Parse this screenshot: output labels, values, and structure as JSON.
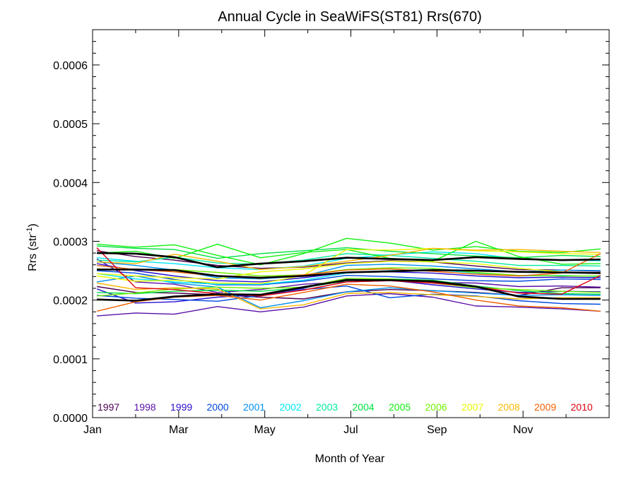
{
  "chart_data": {
    "type": "line",
    "title": "Annual Cycle in SeaWiFS(ST81) Rrs(670)",
    "xlabel": "Month of Year",
    "ylabel_main": "Rrs (str",
    "ylabel_sup": "-1",
    "ylabel_close": ")",
    "xlim": [
      0,
      12
    ],
    "ylim": [
      0,
      0.00066
    ],
    "x_ticks": [
      {
        "value": 0,
        "label": "Jan"
      },
      {
        "value": 2,
        "label": "Mar"
      },
      {
        "value": 4,
        "label": "May"
      },
      {
        "value": 6,
        "label": "Jul"
      },
      {
        "value": 8,
        "label": "Sep"
      },
      {
        "value": 10,
        "label": "Nov"
      }
    ],
    "y_ticks": [
      {
        "value": 0,
        "label": "0.0000"
      },
      {
        "value": 0.0001,
        "label": "0.0001"
      },
      {
        "value": 0.0002,
        "label": "0.0002"
      },
      {
        "value": 0.0003,
        "label": "0.0003"
      },
      {
        "value": 0.0004,
        "label": "0.0004"
      },
      {
        "value": 0.0005,
        "label": "0.0005"
      },
      {
        "value": 0.0006,
        "label": "0.0006"
      }
    ],
    "x": [
      0.1,
      1.0,
      1.9,
      2.9,
      3.9,
      4.9,
      5.9,
      6.9,
      7.9,
      8.9,
      9.9,
      10.9,
      11.8
    ],
    "legend_placement": "bottom",
    "series": [
      {
        "name": "1997",
        "color": "#4b0050",
        "values": [
          0.000223,
          0.000213,
          0.000212,
          0.000209,
          0.000205,
          0.000202,
          0.000214,
          0.000218,
          0.000216,
          0.000213,
          0.000208,
          0.000221,
          0.000221
        ]
      },
      {
        "name": "1997",
        "color": "#4b0050",
        "values": [
          0.000284,
          0.000274,
          0.000268,
          0.000259,
          0.000254,
          0.000256,
          0.000263,
          0.000267,
          0.000265,
          0.000258,
          0.000252,
          0.000251,
          0.000249
        ]
      },
      {
        "name": "1998",
        "color": "#5a10a8",
        "values": [
          0.000173,
          0.000178,
          0.000176,
          0.000189,
          0.00018,
          0.000188,
          0.000207,
          0.000211,
          0.000205,
          0.00019,
          0.000188,
          0.000185,
          0.000181
        ]
      },
      {
        "name": "1998",
        "color": "#5a10a8",
        "values": [
          0.00027,
          0.000231,
          0.000227,
          0.000213,
          0.000218,
          0.000227,
          0.000231,
          0.000233,
          0.00023,
          0.000229,
          0.000223,
          0.000224,
          0.000222
        ]
      },
      {
        "name": "1999",
        "color": "#2a10d0",
        "values": [
          0.000219,
          0.000195,
          0.000197,
          0.000205,
          0.000209,
          0.00022,
          0.000236,
          0.000234,
          0.000226,
          0.000219,
          0.000213,
          0.000215,
          0.000214
        ]
      },
      {
        "name": "1999",
        "color": "#2a10d0",
        "values": [
          0.000262,
          0.00025,
          0.000241,
          0.000233,
          0.000231,
          0.000238,
          0.000247,
          0.000248,
          0.000246,
          0.000241,
          0.000238,
          0.000239,
          0.000238
        ]
      },
      {
        "name": "2000",
        "color": "#0048e0",
        "values": [
          0.00025,
          0.000246,
          0.000235,
          0.000226,
          0.000226,
          0.000232,
          0.000242,
          0.00024,
          0.000236,
          0.000233,
          0.000232,
          0.000236,
          0.000235
        ]
      },
      {
        "name": "2000",
        "color": "#0048e0",
        "values": [
          0.000208,
          0.000203,
          0.000201,
          0.000198,
          0.000208,
          0.000218,
          0.000224,
          0.000204,
          0.00021,
          0.000207,
          0.000199,
          0.000194,
          0.000193
        ]
      },
      {
        "name": "2001",
        "color": "#0090f0",
        "values": [
          0.000265,
          0.000259,
          0.000251,
          0.000238,
          0.000236,
          0.000241,
          0.000259,
          0.000261,
          0.000258,
          0.000253,
          0.000248,
          0.000251,
          0.00025
        ]
      },
      {
        "name": "2001",
        "color": "#0090f0",
        "values": [
          0.000231,
          0.000241,
          0.000229,
          0.000222,
          0.000187,
          0.000199,
          0.000214,
          0.000221,
          0.000216,
          0.000212,
          0.000208,
          0.000209,
          0.000208
        ]
      },
      {
        "name": "2002",
        "color": "#00e8f8",
        "values": [
          0.000272,
          0.000266,
          0.000262,
          0.000255,
          0.000252,
          0.000258,
          0.000271,
          0.000277,
          0.000282,
          0.000279,
          0.00027,
          0.000268,
          0.000267
        ]
      },
      {
        "name": "2002",
        "color": "#00e8f8",
        "values": [
          0.000245,
          0.000236,
          0.000231,
          0.000227,
          0.000227,
          0.000234,
          0.000246,
          0.00025,
          0.000252,
          0.000246,
          0.000241,
          0.000242,
          0.00024
        ]
      },
      {
        "name": "2003",
        "color": "#00e8a0",
        "values": [
          0.000268,
          0.000265,
          0.000273,
          0.000263,
          0.000261,
          0.000268,
          0.000279,
          0.000276,
          0.000271,
          0.000266,
          0.000259,
          0.000259,
          0.000258
        ]
      },
      {
        "name": "2004",
        "color": "#00e040",
        "values": [
          0.000292,
          0.000288,
          0.000286,
          0.000271,
          0.000279,
          0.000284,
          0.000289,
          0.000283,
          0.000279,
          0.000275,
          0.000272,
          0.000276,
          0.000274
        ]
      },
      {
        "name": "2004",
        "color": "#00e040",
        "values": [
          0.000213,
          0.000211,
          0.000215,
          0.000217,
          0.000215,
          0.000221,
          0.000233,
          0.000236,
          0.000234,
          0.000224,
          0.000216,
          0.000211,
          0.00021
        ]
      },
      {
        "name": "2005",
        "color": "#10f010",
        "values": [
          0.000295,
          0.00029,
          0.000294,
          0.000276,
          0.00026,
          0.000279,
          0.000305,
          0.000297,
          0.000285,
          0.000291,
          0.000283,
          0.000281,
          0.000287
        ]
      },
      {
        "name": "2005",
        "color": "#10f010",
        "values": [
          0.00028,
          0.000283,
          0.000271,
          0.000295,
          0.000272,
          0.000281,
          0.000286,
          0.000271,
          0.000266,
          0.0003,
          0.000274,
          0.000261,
          0.000262
        ]
      },
      {
        "name": "2006",
        "color": "#70f000",
        "values": [
          0.000253,
          0.000251,
          0.000252,
          0.000247,
          0.000241,
          0.000243,
          0.000252,
          0.000255,
          0.000254,
          0.000247,
          0.000242,
          0.000241,
          0.000241
        ]
      },
      {
        "name": "2006",
        "color": "#70f000",
        "values": [
          0.000207,
          0.000212,
          0.000219,
          0.000222,
          0.00022,
          0.000222,
          0.000237,
          0.000236,
          0.000229,
          0.000221,
          0.000218,
          0.000215,
          0.000213
        ]
      },
      {
        "name": "2007",
        "color": "#e8f800",
        "values": [
          0.000241,
          0.000232,
          0.000234,
          0.000229,
          0.000228,
          0.000242,
          0.000286,
          0.000285,
          0.000288,
          0.000284,
          0.000282,
          0.000279,
          0.000278
        ]
      },
      {
        "name": "2007",
        "color": "#e8f800",
        "values": [
          0.000245,
          0.000241,
          0.000238,
          0.000236,
          0.000248,
          0.000253,
          0.000262,
          0.000266,
          0.000265,
          0.000262,
          0.000254,
          0.000248,
          0.000246
        ]
      },
      {
        "name": "2008",
        "color": "#f8b800",
        "values": [
          0.000265,
          0.000262,
          0.000278,
          0.000266,
          0.000252,
          0.000257,
          0.000266,
          0.000276,
          0.000288,
          0.000285,
          0.000286,
          0.000283,
          0.000281
        ]
      },
      {
        "name": "2008",
        "color": "#f8b800",
        "values": [
          0.000229,
          0.000218,
          0.000221,
          0.000219,
          0.000185,
          0.000192,
          0.000211,
          0.000213,
          0.000209,
          0.000206,
          0.000202,
          0.000204,
          0.000204
        ]
      },
      {
        "name": "2009",
        "color": "#f06000",
        "values": [
          0.000181,
          0.000197,
          0.000205,
          0.000208,
          0.0002,
          0.000213,
          0.000227,
          0.000224,
          0.000214,
          0.0002,
          0.00019,
          0.000187,
          0.000181
        ]
      },
      {
        "name": "2009",
        "color": "#f06000",
        "values": [
          0.000259,
          0.000252,
          0.000248,
          0.000241,
          0.000237,
          0.000243,
          0.000251,
          0.000253,
          0.000249,
          0.000244,
          0.000241,
          0.000246,
          0.000279
        ]
      },
      {
        "name": "2010",
        "color": "#e00010",
        "values": [
          0.000289,
          0.000221,
          0.000218,
          0.000211,
          0.000207,
          0.000217,
          0.000231,
          0.000233,
          0.000229,
          0.000223,
          0.000212,
          0.00021,
          0.000242
        ]
      },
      {
        "name": "",
        "color": "#000000",
        "values": [
          0.000252,
          0.000252,
          0.000251,
          0.000241,
          0.000238,
          0.000241,
          0.000247,
          0.000249,
          0.000251,
          0.00025,
          0.000248,
          0.000247,
          0.000246
        ]
      },
      {
        "name": "",
        "color": "#000000",
        "values": [
          0.00028,
          0.000279,
          0.000273,
          0.000256,
          0.000262,
          0.000266,
          0.000272,
          0.00027,
          0.000268,
          0.000273,
          0.00027,
          0.000268,
          0.000269
        ]
      },
      {
        "name": "",
        "color": "#000000",
        "values": [
          0.000201,
          0.000199,
          0.000206,
          0.00021,
          0.000209,
          0.000222,
          0.000234,
          0.000234,
          0.000232,
          0.000223,
          0.000206,
          0.000202,
          0.000202
        ]
      }
    ],
    "legend": [
      {
        "label": "1997",
        "color": "#4b0050"
      },
      {
        "label": "1998",
        "color": "#5a10a8"
      },
      {
        "label": "1999",
        "color": "#2a10d0"
      },
      {
        "label": "2000",
        "color": "#0048e0"
      },
      {
        "label": "2001",
        "color": "#0090f0"
      },
      {
        "label": "2002",
        "color": "#00e8f8"
      },
      {
        "label": "2003",
        "color": "#00e8a0"
      },
      {
        "label": "2004",
        "color": "#00e040"
      },
      {
        "label": "2005",
        "color": "#10f010"
      },
      {
        "label": "2006",
        "color": "#70f000"
      },
      {
        "label": "2007",
        "color": "#e8f800"
      },
      {
        "label": "2008",
        "color": "#f8b800"
      },
      {
        "label": "2009",
        "color": "#f06000"
      },
      {
        "label": "2010",
        "color": "#e00010"
      }
    ]
  }
}
